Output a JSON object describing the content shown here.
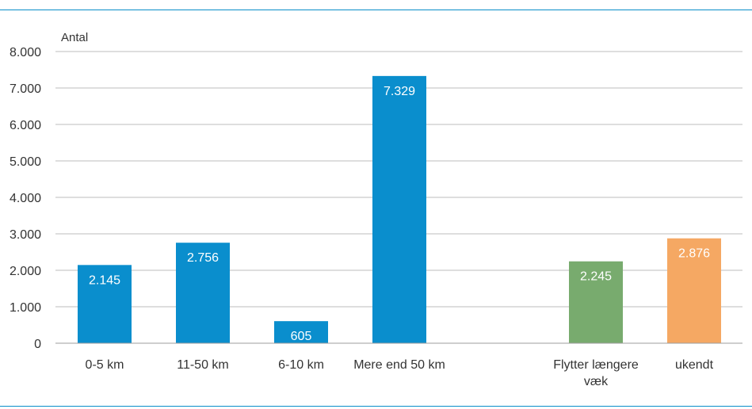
{
  "chart_data": {
    "type": "bar",
    "title": "",
    "xlabel": "",
    "ylabel": "Antal",
    "ylim": [
      0,
      8000
    ],
    "yticks": [
      0,
      1000,
      2000,
      3000,
      4000,
      5000,
      6000,
      7000,
      8000
    ],
    "ytick_labels": [
      "0",
      "1.000",
      "2.000",
      "3.000",
      "4.000",
      "5.000",
      "6.000",
      "7.000",
      "8.000"
    ],
    "grid": true,
    "bars": [
      {
        "category": [
          "0-5 km"
        ],
        "value": 2145,
        "label": "2.145",
        "color": "#0a8ecd"
      },
      {
        "category": [
          "11-50 km"
        ],
        "value": 2756,
        "label": "2.756",
        "color": "#0a8ecd"
      },
      {
        "category": [
          "6-10 km"
        ],
        "value": 605,
        "label": "605",
        "color": "#0a8ecd"
      },
      {
        "category": [
          "Mere end 50 km"
        ],
        "value": 7329,
        "label": "7.329",
        "color": "#0a8ecd"
      },
      {
        "category": [
          ""
        ],
        "value": null,
        "label": "",
        "color": ""
      },
      {
        "category": [
          "Flytter længere",
          "væk"
        ],
        "value": 2245,
        "label": "2.245",
        "color": "#78ab6e"
      },
      {
        "category": [
          "ukendt"
        ],
        "value": 2876,
        "label": "2.876",
        "color": "#f5a863"
      }
    ]
  }
}
